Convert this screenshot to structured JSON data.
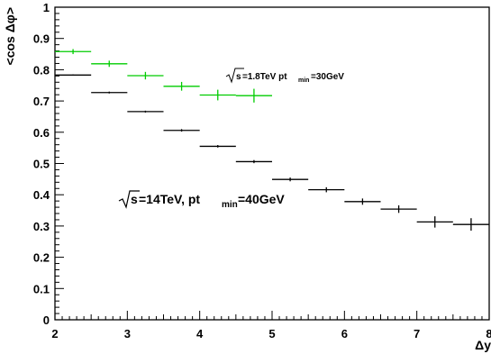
{
  "chart_data": {
    "type": "scatter",
    "ylabel": "<cos Δφ>",
    "xlabel": "Δy",
    "xlim": [
      2,
      8
    ],
    "ylim": [
      0,
      1
    ],
    "x_ticks": [
      "2",
      "3",
      "4",
      "5",
      "6",
      "7",
      "8"
    ],
    "y_ticks": [
      "0",
      "0.1",
      "0.2",
      "0.3",
      "0.4",
      "0.5",
      "0.6",
      "0.7",
      "0.8",
      "0.9",
      "1"
    ],
    "grid": false,
    "series": [
      {
        "color": "#00cc00",
        "points": [
          {
            "x": 2.25,
            "y": 0.858,
            "xerr": 0.25,
            "yerr": 0.008
          },
          {
            "x": 2.75,
            "y": 0.819,
            "xerr": 0.25,
            "yerr": 0.01
          },
          {
            "x": 3.25,
            "y": 0.781,
            "xerr": 0.25,
            "yerr": 0.012
          },
          {
            "x": 3.75,
            "y": 0.747,
            "xerr": 0.25,
            "yerr": 0.014
          },
          {
            "x": 4.25,
            "y": 0.719,
            "xerr": 0.25,
            "yerr": 0.017
          },
          {
            "x": 4.75,
            "y": 0.717,
            "xerr": 0.25,
            "yerr": 0.022
          }
        ]
      },
      {
        "color": "#000000",
        "points": [
          {
            "x": 2.25,
            "y": 0.783,
            "xerr": 0.25,
            "yerr": 0.002
          },
          {
            "x": 2.75,
            "y": 0.727,
            "xerr": 0.25,
            "yerr": 0.003
          },
          {
            "x": 3.25,
            "y": 0.666,
            "xerr": 0.25,
            "yerr": 0.003
          },
          {
            "x": 3.75,
            "y": 0.606,
            "xerr": 0.25,
            "yerr": 0.004
          },
          {
            "x": 4.25,
            "y": 0.555,
            "xerr": 0.25,
            "yerr": 0.004
          },
          {
            "x": 4.75,
            "y": 0.506,
            "xerr": 0.25,
            "yerr": 0.005
          },
          {
            "x": 5.25,
            "y": 0.449,
            "xerr": 0.25,
            "yerr": 0.006
          },
          {
            "x": 5.75,
            "y": 0.416,
            "xerr": 0.25,
            "yerr": 0.008
          },
          {
            "x": 6.25,
            "y": 0.378,
            "xerr": 0.25,
            "yerr": 0.01
          },
          {
            "x": 6.75,
            "y": 0.354,
            "xerr": 0.25,
            "yerr": 0.012
          },
          {
            "x": 7.25,
            "y": 0.313,
            "xerr": 0.25,
            "yerr": 0.018
          },
          {
            "x": 7.75,
            "y": 0.305,
            "xerr": 0.25,
            "yerr": 0.02
          }
        ]
      }
    ],
    "annotations": [
      {
        "id": "ann-1800",
        "sqrt": "s",
        "text_pre": "=1.8TeV pt",
        "sub": "min",
        "text_post": "=30GeV"
      },
      {
        "id": "ann-14000",
        "sqrt": "s",
        "text_pre": "=14TeV, pt",
        "sub": "min",
        "text_post": "=40GeV"
      }
    ]
  }
}
